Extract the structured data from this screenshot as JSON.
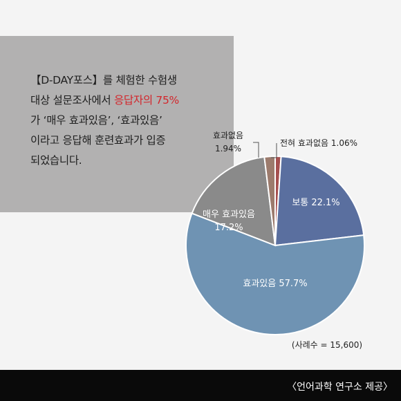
{
  "intro": {
    "line1": "【D-DAY포스】를 체험한 수험생",
    "line2_pre": "대상 설문조사에서 ",
    "line2_hl": "응답자의 75%",
    "line3": "가 ‘매우 효과있음’, ‘효과있음’",
    "line4": "이라고 응답해 훈련효과가 입증",
    "line5": "되었습니다."
  },
  "footer": {
    "credit": "〈언어과학 연구소 제공〉"
  },
  "colors": {
    "highlight": "#d3252b",
    "background": "#f4f4f4",
    "box": "#b2b1b1",
    "footer": "#0a0a0a"
  },
  "chart_data": {
    "type": "pie",
    "title": "",
    "note": "(사례수 = 15,600)",
    "slices": [
      {
        "label": "전혀 효과없음",
        "value": 1.06,
        "display": "1.06%",
        "color": "#a64f4f"
      },
      {
        "label": "보통",
        "value": 22.1,
        "display": "22.1%",
        "color": "#5a6f9f"
      },
      {
        "label": "효과있음",
        "value": 57.7,
        "display": "57.7%",
        "color": "#6f93b3"
      },
      {
        "label": "매우 효과있음",
        "value": 17.2,
        "display": "17.2%",
        "color": "#8a8a8a"
      },
      {
        "label": "효과없음",
        "value": 1.94,
        "display": "1.94%",
        "color": "#9c7b6d"
      }
    ]
  }
}
